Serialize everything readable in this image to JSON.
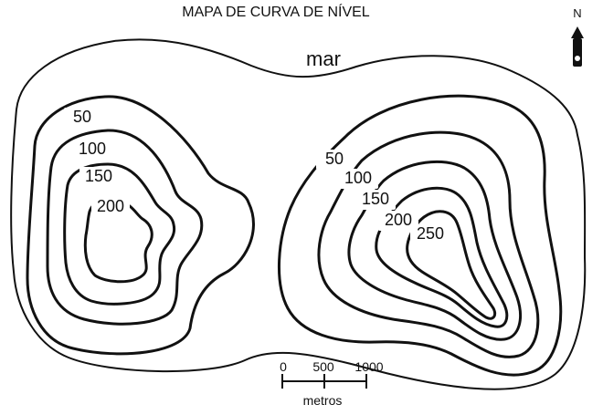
{
  "title": "MAPA DE CURVA DE NÍVEL",
  "sea_label": "mar",
  "north": {
    "label": "N",
    "icon": "north-arrow-icon"
  },
  "scale": {
    "ticks": [
      "0",
      "500",
      "1000"
    ],
    "unit": "metros"
  },
  "contours": {
    "left_island": [
      "50",
      "100",
      "150",
      "200"
    ],
    "right_island": [
      "50",
      "100",
      "150",
      "200",
      "250"
    ]
  },
  "colors": {
    "line": "#111111",
    "background": "#ffffff"
  }
}
